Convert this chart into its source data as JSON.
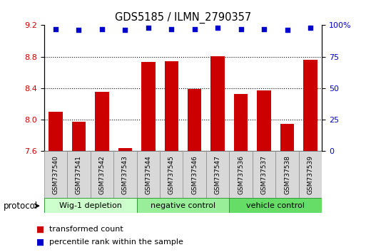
{
  "title": "GDS5185 / ILMN_2790357",
  "samples": [
    "GSM737540",
    "GSM737541",
    "GSM737542",
    "GSM737543",
    "GSM737544",
    "GSM737545",
    "GSM737546",
    "GSM737547",
    "GSM737536",
    "GSM737537",
    "GSM737538",
    "GSM737539"
  ],
  "transformed_count": [
    8.1,
    7.97,
    8.35,
    7.64,
    8.73,
    8.74,
    8.39,
    8.81,
    8.33,
    8.37,
    7.95,
    8.76
  ],
  "percentile_rank": [
    97,
    96,
    97,
    96,
    98,
    97,
    97,
    98,
    97,
    97,
    96,
    98
  ],
  "groups": [
    {
      "label": "Wig-1 depletion",
      "start": 0,
      "end": 4,
      "color": "#ccffcc"
    },
    {
      "label": "negative control",
      "start": 4,
      "end": 8,
      "color": "#99ee99"
    },
    {
      "label": "vehicle control",
      "start": 8,
      "end": 12,
      "color": "#66dd66"
    }
  ],
  "bar_color": "#cc0000",
  "dot_color": "#0000cc",
  "ylim_left": [
    7.6,
    9.2
  ],
  "ylim_right": [
    0,
    100
  ],
  "yticks_left": [
    7.6,
    8.0,
    8.4,
    8.8,
    9.2
  ],
  "yticks_right": [
    0,
    25,
    50,
    75,
    100
  ],
  "grid_values": [
    8.0,
    8.4,
    8.8
  ],
  "bar_width": 0.6,
  "protocol_label": "protocol",
  "legend_red": "transformed count",
  "legend_blue": "percentile rank within the sample",
  "background_color": "#ffffff",
  "tick_label_color_left": "#cc0000",
  "tick_label_color_right": "#0000cc",
  "group_colors": [
    "#ccffcc",
    "#99ee99",
    "#66dd66"
  ]
}
